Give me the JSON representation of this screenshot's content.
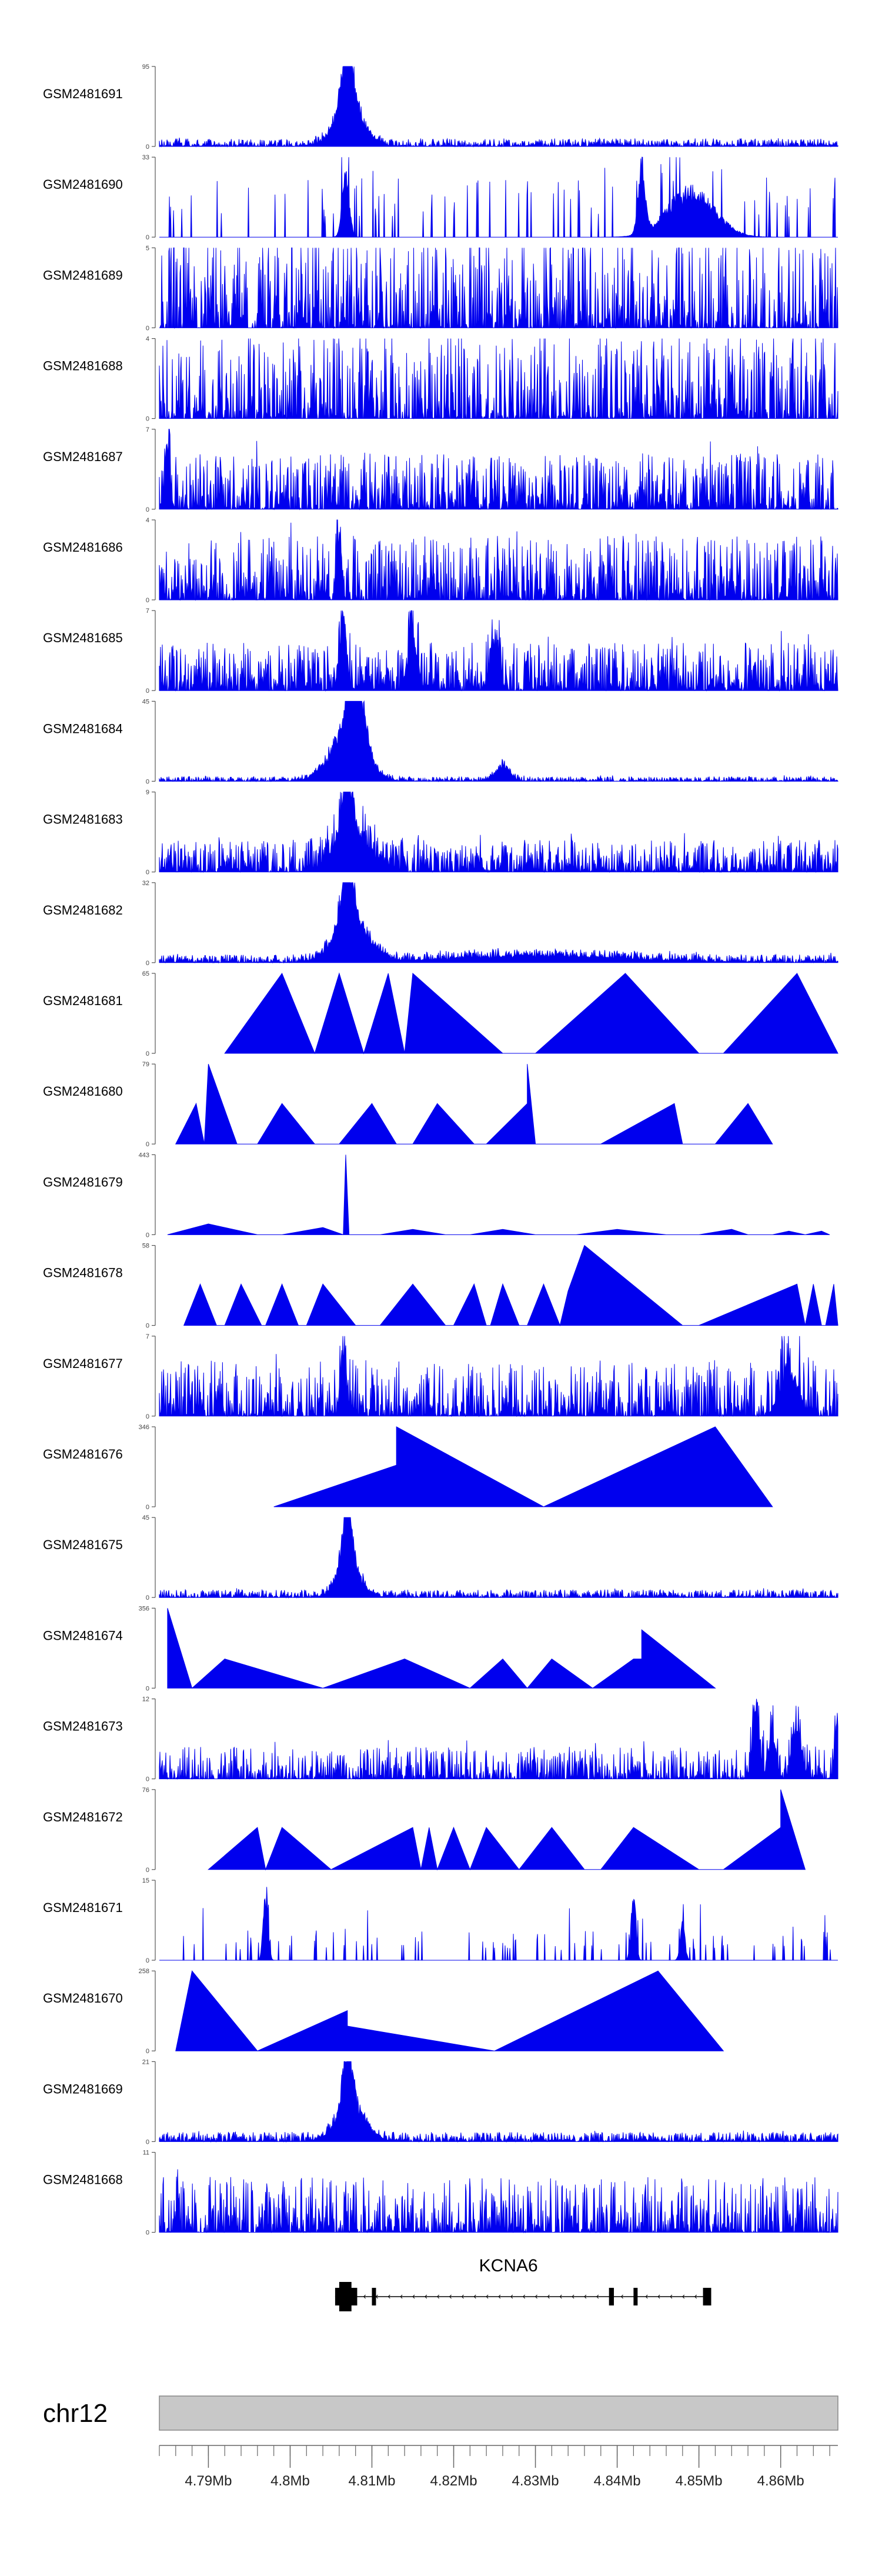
{
  "chart_data": {
    "type": "area",
    "title": "",
    "xlabel": "",
    "ylabel": "",
    "color": "#0000ee",
    "xlim": [
      4.784,
      4.867
    ],
    "tracks": [
      {
        "name": "GSM2481691",
        "ymax": 95,
        "style": "dense",
        "noise": 0.05,
        "density": 1.0,
        "peaks": [
          [
            4.807,
            95,
            0.001
          ],
          [
            4.8072,
            50,
            0.0025
          ]
        ],
        "seed": 11
      },
      {
        "name": "GSM2481690",
        "ymax": 33,
        "style": "sparse",
        "noise": 0.5,
        "peaks": [
          [
            4.8068,
            30,
            0.0006
          ],
          [
            4.843,
            33,
            0.0006
          ],
          [
            4.849,
            22,
            0.004
          ]
        ],
        "seed": 12
      },
      {
        "name": "GSM2481689",
        "ymax": 5,
        "style": "dense",
        "noise": 0.6,
        "density": 0.7,
        "peaks": [],
        "seed": 13
      },
      {
        "name": "GSM2481688",
        "ymax": 4,
        "style": "dense",
        "noise": 0.55,
        "density": 0.7,
        "peaks": [],
        "seed": 14
      },
      {
        "name": "GSM2481687",
        "ymax": 7,
        "style": "dense",
        "noise": 0.35,
        "density": 0.8,
        "peaks": [
          [
            4.785,
            7,
            0.0004
          ]
        ],
        "seed": 15
      },
      {
        "name": "GSM2481686",
        "ymax": 4,
        "style": "dense",
        "noise": 0.4,
        "density": 0.8,
        "peaks": [
          [
            4.806,
            4,
            0.0004
          ]
        ],
        "seed": 16
      },
      {
        "name": "GSM2481685",
        "ymax": 7,
        "style": "dense",
        "noise": 0.3,
        "density": 0.9,
        "peaks": [
          [
            4.8065,
            7,
            0.0006
          ],
          [
            4.815,
            5,
            0.0008
          ],
          [
            4.825,
            5,
            0.0008
          ]
        ],
        "seed": 17
      },
      {
        "name": "GSM2481684",
        "ymax": 45,
        "style": "dense",
        "noise": 0.03,
        "density": 1.0,
        "peaks": [
          [
            4.808,
            45,
            0.0015
          ],
          [
            4.807,
            30,
            0.003
          ],
          [
            4.826,
            10,
            0.0012
          ]
        ],
        "seed": 18
      },
      {
        "name": "GSM2481683",
        "ymax": 9,
        "style": "dense",
        "noise": 0.2,
        "density": 0.9,
        "peaks": [
          [
            4.807,
            9,
            0.0008
          ],
          [
            4.8075,
            5,
            0.003
          ]
        ],
        "seed": 19
      },
      {
        "name": "GSM2481682",
        "ymax": 32,
        "style": "dense",
        "noise": 0.05,
        "density": 1.0,
        "peaks": [
          [
            4.807,
            32,
            0.001
          ],
          [
            4.8075,
            18,
            0.003
          ],
          [
            4.83,
            3,
            0.015
          ]
        ],
        "seed": 20
      },
      {
        "name": "GSM2481681",
        "ymax": 65,
        "style": "tri",
        "tri": [
          [
            4.792,
            0
          ],
          [
            4.799,
            65
          ],
          [
            4.803,
            0
          ],
          [
            4.806,
            65
          ],
          [
            4.809,
            0
          ],
          [
            4.812,
            65
          ],
          [
            4.814,
            0
          ],
          [
            4.815,
            65
          ],
          [
            4.826,
            0
          ],
          [
            4.83,
            0
          ],
          [
            4.841,
            65
          ],
          [
            4.85,
            0
          ],
          [
            4.853,
            0
          ],
          [
            4.862,
            65
          ],
          [
            4.867,
            0
          ]
        ]
      },
      {
        "name": "GSM2481680",
        "ymax": 79,
        "style": "tri",
        "tri": [
          [
            4.786,
            0
          ],
          [
            4.7885,
            40
          ],
          [
            4.7895,
            0
          ],
          [
            4.79,
            79
          ],
          [
            4.7935,
            0
          ],
          [
            4.796,
            0
          ],
          [
            4.799,
            40
          ],
          [
            4.803,
            0
          ],
          [
            4.806,
            0
          ],
          [
            4.81,
            40
          ],
          [
            4.813,
            0
          ],
          [
            4.815,
            0
          ],
          [
            4.818,
            40
          ],
          [
            4.8225,
            0
          ],
          [
            4.824,
            0
          ],
          [
            4.829,
            40
          ],
          [
            4.829,
            79
          ],
          [
            4.83,
            0
          ],
          [
            4.832,
            0
          ],
          [
            4.838,
            0
          ],
          [
            4.847,
            40
          ],
          [
            4.848,
            0
          ],
          [
            4.852,
            0
          ],
          [
            4.856,
            40
          ],
          [
            4.859,
            0
          ]
        ]
      },
      {
        "name": "GSM2481679",
        "ymax": 443,
        "style": "tri",
        "tri": [
          [
            4.785,
            0
          ],
          [
            4.79,
            60
          ],
          [
            4.796,
            0
          ],
          [
            4.799,
            0
          ],
          [
            4.804,
            40
          ],
          [
            4.8065,
            0
          ],
          [
            4.8068,
            443
          ],
          [
            4.8072,
            0
          ],
          [
            4.811,
            0
          ],
          [
            4.815,
            30
          ],
          [
            4.819,
            0
          ],
          [
            4.822,
            0
          ],
          [
            4.826,
            30
          ],
          [
            4.83,
            0
          ],
          [
            4.835,
            0
          ],
          [
            4.84,
            30
          ],
          [
            4.846,
            0
          ],
          [
            4.85,
            0
          ],
          [
            4.854,
            30
          ],
          [
            4.856,
            0
          ],
          [
            4.859,
            0
          ],
          [
            4.861,
            20
          ],
          [
            4.863,
            0
          ],
          [
            4.865,
            20
          ],
          [
            4.866,
            0
          ]
        ]
      },
      {
        "name": "GSM2481678",
        "ymax": 58,
        "style": "tri",
        "tri": [
          [
            4.787,
            0
          ],
          [
            4.789,
            30
          ],
          [
            4.791,
            0
          ],
          [
            4.792,
            0
          ],
          [
            4.794,
            30
          ],
          [
            4.7965,
            0
          ],
          [
            4.797,
            0
          ],
          [
            4.799,
            30
          ],
          [
            4.801,
            0
          ],
          [
            4.802,
            0
          ],
          [
            4.804,
            30
          ],
          [
            4.808,
            0
          ],
          [
            4.811,
            0
          ],
          [
            4.815,
            30
          ],
          [
            4.819,
            0
          ],
          [
            4.82,
            0
          ],
          [
            4.8225,
            30
          ],
          [
            4.824,
            0
          ],
          [
            4.8245,
            0
          ],
          [
            4.826,
            30
          ],
          [
            4.828,
            0
          ],
          [
            4.829,
            0
          ],
          [
            4.831,
            30
          ],
          [
            4.833,
            0
          ],
          [
            4.834,
            25
          ],
          [
            4.836,
            58
          ],
          [
            4.848,
            0
          ],
          [
            4.85,
            0
          ],
          [
            4.862,
            30
          ],
          [
            4.863,
            0
          ],
          [
            4.864,
            30
          ],
          [
            4.865,
            0
          ],
          [
            4.8655,
            0
          ],
          [
            4.8665,
            30
          ],
          [
            4.867,
            0
          ]
        ]
      },
      {
        "name": "GSM2481677",
        "ymax": 7,
        "style": "dense",
        "noise": 0.35,
        "density": 0.75,
        "peaks": [
          [
            4.8065,
            7,
            0.0005
          ],
          [
            4.861,
            5,
            0.0015
          ]
        ],
        "seed": 21
      },
      {
        "name": "GSM2481676",
        "ymax": 346,
        "style": "tri",
        "tri": [
          [
            4.798,
            0
          ],
          [
            4.813,
            180
          ],
          [
            4.813,
            346
          ],
          [
            4.831,
            0
          ],
          [
            4.852,
            346
          ],
          [
            4.859,
            0
          ]
        ]
      },
      {
        "name": "GSM2481675",
        "ymax": 45,
        "style": "dense",
        "noise": 0.05,
        "density": 1.0,
        "peaks": [
          [
            4.807,
            45,
            0.0008
          ],
          [
            4.8072,
            20,
            0.002
          ]
        ],
        "seed": 22
      },
      {
        "name": "GSM2481674",
        "ymax": 356,
        "style": "tri",
        "tri": [
          [
            4.785,
            356
          ],
          [
            4.788,
            0
          ],
          [
            4.792,
            130
          ],
          [
            4.804,
            0
          ],
          [
            4.814,
            130
          ],
          [
            4.822,
            0
          ],
          [
            4.826,
            130
          ],
          [
            4.829,
            0
          ],
          [
            4.832,
            130
          ],
          [
            4.837,
            0
          ],
          [
            4.842,
            130
          ],
          [
            4.843,
            130
          ],
          [
            4.843,
            260
          ],
          [
            4.852,
            0
          ]
        ]
      },
      {
        "name": "GSM2481673",
        "ymax": 12,
        "style": "dense",
        "noise": 0.2,
        "density": 0.7,
        "peaks": [
          [
            4.857,
            12,
            0.0006
          ],
          [
            4.859,
            8,
            0.0006
          ],
          [
            4.862,
            8,
            0.0008
          ],
          [
            4.867,
            12,
            0.0004
          ]
        ],
        "seed": 23
      },
      {
        "name": "GSM2481672",
        "ymax": 76,
        "style": "tri",
        "tri": [
          [
            4.79,
            0
          ],
          [
            4.796,
            40
          ],
          [
            4.797,
            0
          ],
          [
            4.799,
            40
          ],
          [
            4.805,
            0
          ],
          [
            4.815,
            40
          ],
          [
            4.816,
            0
          ],
          [
            4.817,
            40
          ],
          [
            4.818,
            0
          ],
          [
            4.82,
            40
          ],
          [
            4.822,
            0
          ],
          [
            4.824,
            40
          ],
          [
            4.828,
            0
          ],
          [
            4.832,
            40
          ],
          [
            4.836,
            0
          ],
          [
            4.838,
            0
          ],
          [
            4.842,
            40
          ],
          [
            4.85,
            0
          ],
          [
            4.853,
            0
          ],
          [
            4.86,
            40
          ],
          [
            4.86,
            76
          ],
          [
            4.863,
            0
          ]
        ]
      },
      {
        "name": "GSM2481671",
        "ymax": 15,
        "style": "sparse",
        "noise": 0.25,
        "peaks": [
          [
            4.797,
            15,
            0.0004
          ],
          [
            4.842,
            15,
            0.0004
          ],
          [
            4.848,
            8,
            0.0004
          ]
        ],
        "seed": 24
      },
      {
        "name": "GSM2481670",
        "ymax": 258,
        "style": "tri",
        "tri": [
          [
            4.786,
            0
          ],
          [
            4.788,
            258
          ],
          [
            4.796,
            0
          ],
          [
            4.807,
            130
          ],
          [
            4.807,
            80
          ],
          [
            4.825,
            0
          ],
          [
            4.845,
            258
          ],
          [
            4.853,
            0
          ]
        ]
      },
      {
        "name": "GSM2481669",
        "ymax": 21,
        "style": "dense",
        "noise": 0.06,
        "density": 1.0,
        "peaks": [
          [
            4.807,
            21,
            0.0008
          ],
          [
            4.8075,
            10,
            0.0025
          ]
        ],
        "seed": 25
      },
      {
        "name": "GSM2481668",
        "ymax": 11,
        "style": "dense",
        "noise": 0.35,
        "density": 0.75,
        "peaks": [],
        "seed": 26
      }
    ],
    "gene": {
      "name": "KCNA6",
      "start": 4.8055,
      "end": 4.8515,
      "exons": [
        [
          4.8055,
          4.8082
        ],
        [
          4.81,
          4.8105
        ],
        [
          4.839,
          4.8396
        ],
        [
          4.842,
          4.8425
        ],
        [
          4.8505,
          4.8515
        ]
      ],
      "thick": [
        4.806,
        4.8075
      ]
    },
    "ideogram": {
      "chromosome": "chr12",
      "tick_labels": [
        "4.79Mb",
        "4.8Mb",
        "4.81Mb",
        "4.82Mb",
        "4.83Mb",
        "4.84Mb",
        "4.85Mb",
        "4.86Mb"
      ],
      "ticks": [
        4.79,
        4.8,
        4.81,
        4.82,
        4.83,
        4.84,
        4.85,
        4.86
      ],
      "minor_step": 0.002
    }
  }
}
